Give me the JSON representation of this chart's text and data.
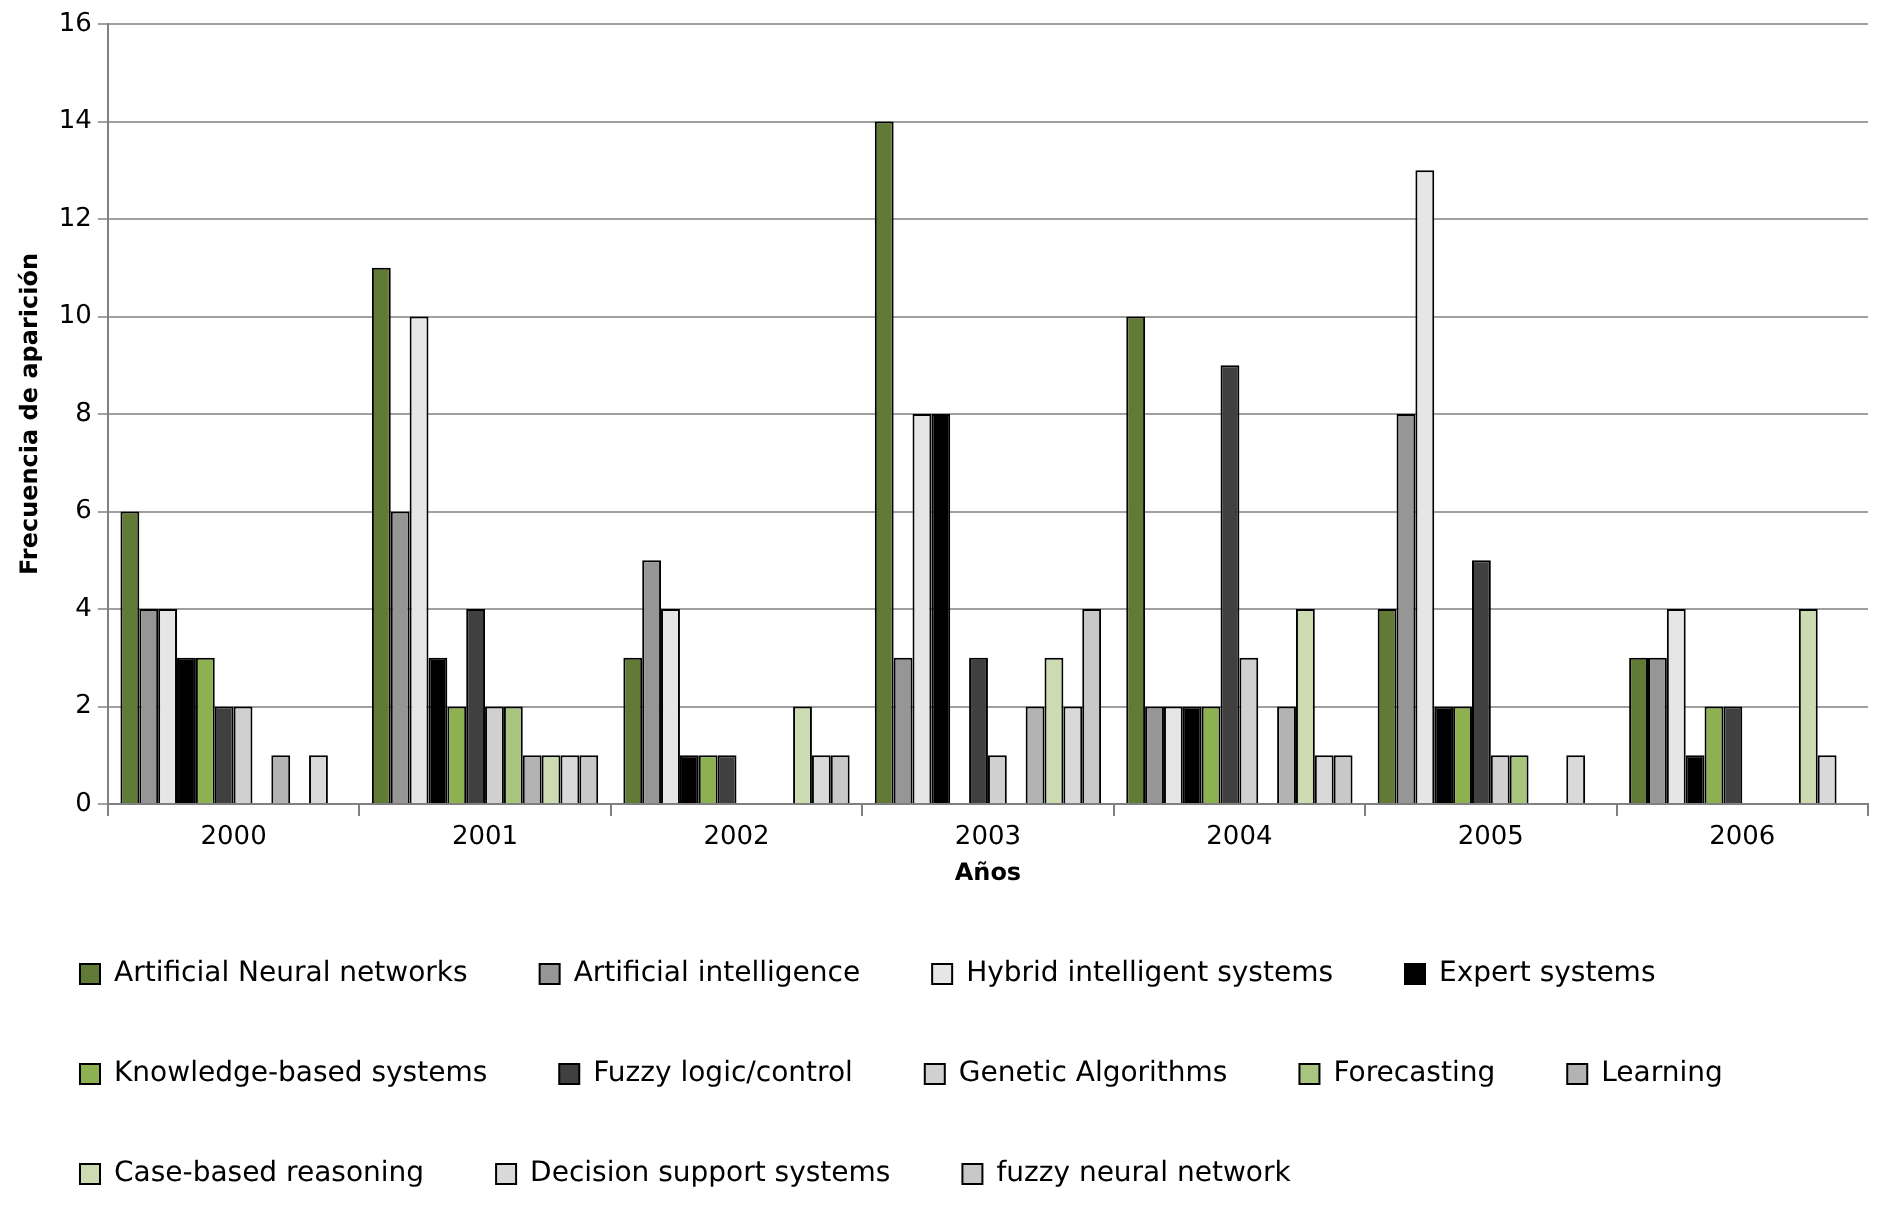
{
  "chart_data": {
    "type": "bar",
    "xlabel": "Años",
    "ylabel": "Frecuencia de aparición",
    "categories": [
      "2000",
      "2001",
      "2002",
      "2003",
      "2004",
      "2005",
      "2006"
    ],
    "series": [
      {
        "name": "Artificial Neural networks",
        "color": "#617a35",
        "values": [
          6,
          11,
          3,
          14,
          10,
          4,
          3
        ]
      },
      {
        "name": "Artificial intelligence",
        "color": "#969696",
        "values": [
          4,
          6,
          5,
          3,
          2,
          8,
          3
        ]
      },
      {
        "name": "Hybrid intelligent systems",
        "color": "#e6e6e6",
        "values": [
          4,
          10,
          4,
          8,
          2,
          13,
          4
        ]
      },
      {
        "name": "Expert systems",
        "color": "#000000",
        "values": [
          3,
          3,
          1,
          8,
          2,
          2,
          1
        ]
      },
      {
        "name": "Knowledge-based systems",
        "color": "#8db050",
        "values": [
          3,
          2,
          1,
          0,
          2,
          2,
          2
        ]
      },
      {
        "name": "Fuzzy logic/control",
        "color": "#404040",
        "values": [
          2,
          4,
          1,
          3,
          9,
          5,
          2
        ]
      },
      {
        "name": "Genetic Algorithms",
        "color": "#d0d0d0",
        "values": [
          2,
          2,
          0,
          1,
          3,
          1,
          0
        ]
      },
      {
        "name": "Forecasting",
        "color": "#a9c47f",
        "values": [
          0,
          2,
          0,
          0,
          0,
          1,
          0
        ]
      },
      {
        "name": "Learning",
        "color": "#b3b3b3",
        "values": [
          1,
          1,
          0,
          2,
          2,
          0,
          0
        ]
      },
      {
        "name": "Case-based reasoning",
        "color": "#cddbb3",
        "values": [
          0,
          1,
          2,
          3,
          4,
          0,
          4
        ]
      },
      {
        "name": "Decision support systems",
        "color": "#d9d9d9",
        "values": [
          1,
          1,
          1,
          2,
          1,
          1,
          1
        ]
      },
      {
        "name": "fuzzy neural network",
        "color": "#c8c8c8",
        "values": [
          0,
          1,
          1,
          4,
          1,
          0,
          0
        ]
      }
    ],
    "ylim": [
      0,
      16
    ],
    "yticks": [
      0,
      2,
      4,
      6,
      8,
      10,
      12,
      14,
      16
    ],
    "grid": "y",
    "legend": "bottom"
  }
}
